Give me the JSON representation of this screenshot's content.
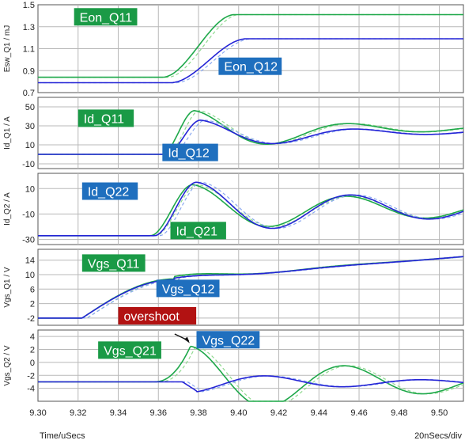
{
  "chart_data": {
    "type": "line",
    "colors": {
      "green": "#1ea84a",
      "blue": "#2424d6",
      "green_dash": "#8fd98f",
      "blue_dash": "#8aa8f0",
      "label_green": "#1a9a46",
      "label_blue": "#1f6fbe",
      "label_red": "#b21212"
    },
    "x": {
      "ticks": [
        9.3,
        9.32,
        9.34,
        9.36,
        9.38,
        9.4,
        9.42,
        9.44,
        9.46,
        9.48,
        9.5
      ],
      "tick_labels": [
        "9.30",
        "9.32",
        "9.34",
        "9.36",
        "9.38",
        "9.40",
        "9.42",
        "9.44",
        "9.46",
        "9.48",
        "9.50"
      ],
      "range": [
        9.3,
        9.512
      ],
      "label": "Time/uSecs",
      "scale_note": "20nSecs/div"
    },
    "panels": [
      {
        "ylabel": "Esw_Q1 / mJ",
        "yrange": [
          0.7,
          1.5
        ],
        "yticks": [
          0.7,
          0.9,
          1.1,
          1.3,
          1.5
        ],
        "ytick_labels": [
          "0.7",
          "0.9",
          "1.1",
          "1.3",
          "1.5"
        ],
        "series": [
          {
            "name": "Eon_Q11",
            "color": "green",
            "shape": "ramp",
            "base": 0.84,
            "final": 1.41,
            "t0": 9.362,
            "t1": 9.398
          },
          {
            "name": "Eon_Q12",
            "color": "blue",
            "shape": "ramp",
            "base": 0.79,
            "final": 1.19,
            "t0": 9.366,
            "t1": 9.404
          }
        ],
        "labels": [
          {
            "text": "Eon_Q11",
            "color": "label_green",
            "x": 9.318,
            "y": 1.39
          },
          {
            "text": "Eon_Q12",
            "color": "label_blue",
            "x": 9.39,
            "y": 0.94
          }
        ]
      },
      {
        "ylabel": "Id_Q1 / A",
        "yrange": [
          -15,
          60
        ],
        "yticks": [
          -10,
          10,
          30,
          50
        ],
        "ytick_labels": [
          "-10",
          "10",
          "30",
          "50"
        ],
        "series": [
          {
            "name": "Id_Q11",
            "color": "green",
            "shape": "current",
            "base": 0,
            "start": 9.362,
            "peak_t": 9.378,
            "peak": 46,
            "final": 22,
            "drift": 6,
            "amp": 20,
            "freq": 0.078,
            "decay": 0.07
          },
          {
            "name": "Id_Q12",
            "color": "blue",
            "shape": "current",
            "base": 0,
            "start": 9.364,
            "peak_t": 9.381,
            "peak": 36,
            "final": 19,
            "drift": 5,
            "amp": 15,
            "freq": 0.078,
            "decay": 0.07
          }
        ],
        "labels": [
          {
            "text": "Id_Q11",
            "color": "label_green",
            "x": 9.32,
            "y": 38
          },
          {
            "text": "Id_Q12",
            "color": "label_blue",
            "x": 9.362,
            "y": 2
          }
        ]
      },
      {
        "ylabel": "Id_Q2 / A",
        "yrange": [
          -34,
          22
        ],
        "yticks": [
          -30,
          -10,
          10
        ],
        "ytick_labels": [
          "-30",
          "-10",
          "10"
        ],
        "series": [
          {
            "name": "Id_Q21",
            "color": "green",
            "shape": "current",
            "base": -27,
            "start": 9.356,
            "peak_t": 9.377,
            "peak": 13,
            "final": -6,
            "drift": 0,
            "amp": 17,
            "freq": 0.078,
            "decay": 0.12
          },
          {
            "name": "Id_Q22",
            "color": "blue",
            "shape": "current",
            "base": -27,
            "start": 9.358,
            "peak_t": 9.379,
            "peak": 15,
            "final": -6,
            "drift": 0,
            "amp": 17,
            "freq": 0.078,
            "decay": 0.12
          }
        ],
        "labels": [
          {
            "text": "Id_Q22",
            "color": "label_blue",
            "x": 9.322,
            "y": 8
          },
          {
            "text": "Id_Q21",
            "color": "label_green",
            "x": 9.366,
            "y": -23
          }
        ]
      },
      {
        "ylabel": "Vgs_Q1 / V",
        "yrange": [
          -4,
          17
        ],
        "yticks": [
          -2,
          2,
          6,
          10,
          14
        ],
        "ytick_labels": [
          "-2",
          "2",
          "6",
          "10",
          "14"
        ],
        "series": [
          {
            "name": "Vgs_Q11",
            "color": "green",
            "shape": "gate",
            "base": -2,
            "start": 9.322,
            "plateau_t": 9.368,
            "plateau": 8.8,
            "end": 9.512,
            "final": 15,
            "amp": 1.2,
            "freq": 0.078,
            "decay": 0.04
          },
          {
            "name": "Vgs_Q12",
            "color": "blue",
            "shape": "gate",
            "base": -2,
            "start": 9.322,
            "plateau_t": 9.368,
            "plateau": 8.6,
            "end": 9.512,
            "final": 15,
            "amp": 0.8,
            "freq": 0.078,
            "decay": 0.04
          }
        ],
        "labels": [
          {
            "text": "Vgs_Q11",
            "color": "label_green",
            "x": 9.322,
            "y": 13.2
          },
          {
            "text": "Vgs_Q12",
            "color": "label_blue",
            "x": 9.359,
            "y": 6.2
          }
        ]
      },
      {
        "ylabel": "Vgs_Q2 / V",
        "yrange": [
          -6,
          5
        ],
        "yticks": [
          -4,
          -2,
          0,
          2,
          4
        ],
        "ytick_labels": [
          "-4",
          "-2",
          "0",
          "2",
          "4"
        ],
        "series": [
          {
            "name": "Vgs_Q21",
            "color": "green",
            "shape": "spike",
            "base": -3,
            "start": 9.358,
            "peak_t": 9.376,
            "peak": 2.5,
            "final": -3.1,
            "amp": 2.4,
            "freq": 0.078,
            "decay": 0.1
          },
          {
            "name": "Vgs_Q22",
            "color": "blue",
            "shape": "dip",
            "base": -3,
            "start": 9.372,
            "peak_t": 9.379,
            "peak": -4.4,
            "final": -3.1,
            "amp": 2.0,
            "freq": 0.078,
            "decay": 0.09
          }
        ],
        "labels": [
          {
            "text": "Vgs_Q21",
            "color": "label_green",
            "x": 9.33,
            "y": 1.9
          },
          {
            "text": "Vgs_Q22",
            "color": "label_blue",
            "x": 9.379,
            "y": 3.5
          },
          {
            "text": "overshoot",
            "color": "label_red",
            "x": 9.34,
            "y": 6.6
          }
        ],
        "annotation": {
          "text": "overshoot",
          "points_to": [
            9.376,
            2.6
          ]
        }
      }
    ]
  }
}
